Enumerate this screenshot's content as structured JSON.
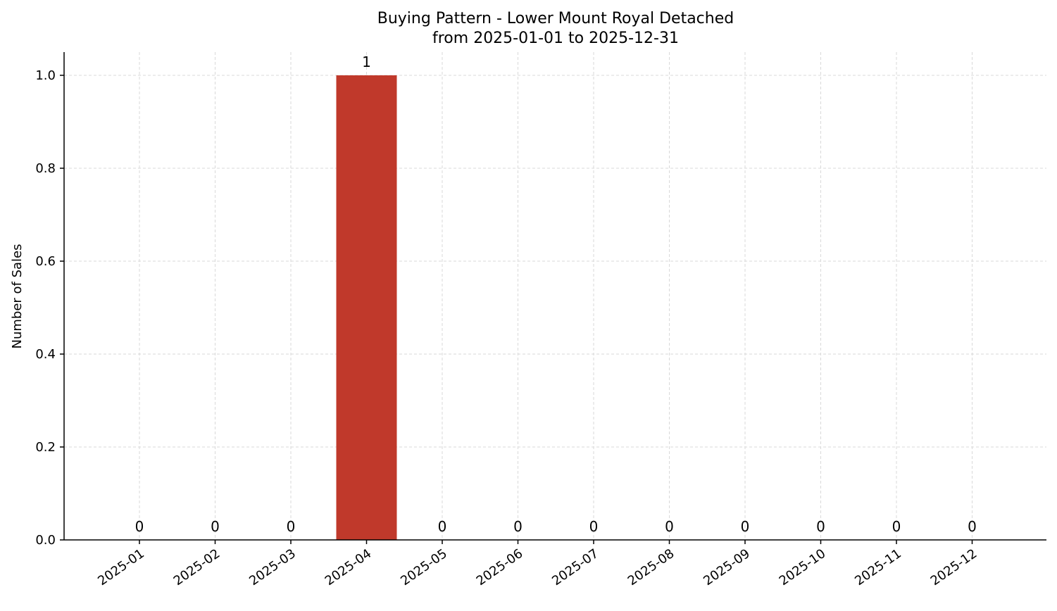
{
  "chart_data": {
    "type": "bar",
    "title": "Buying Pattern - Lower Mount Royal Detached",
    "subtitle": "from 2025-01-01 to 2025-12-31",
    "xlabel": "",
    "ylabel": "Number of Sales",
    "categories": [
      "2025-01",
      "2025-02",
      "2025-03",
      "2025-04",
      "2025-05",
      "2025-06",
      "2025-07",
      "2025-08",
      "2025-09",
      "2025-10",
      "2025-11",
      "2025-12"
    ],
    "values": [
      0,
      0,
      0,
      1,
      0,
      0,
      0,
      0,
      0,
      0,
      0,
      0
    ],
    "data_labels": [
      "0",
      "0",
      "0",
      "1",
      "0",
      "0",
      "0",
      "0",
      "0",
      "0",
      "0",
      "0"
    ],
    "ylim": [
      0,
      1.05
    ],
    "yticks": [
      0.0,
      0.2,
      0.4,
      0.6,
      0.8,
      1.0
    ],
    "ytick_labels": [
      "0.0",
      "0.2",
      "0.4",
      "0.6",
      "0.8",
      "1.0"
    ],
    "bar_color": "#c0392b",
    "grid": true,
    "x_tick_rotation_deg": 35
  }
}
